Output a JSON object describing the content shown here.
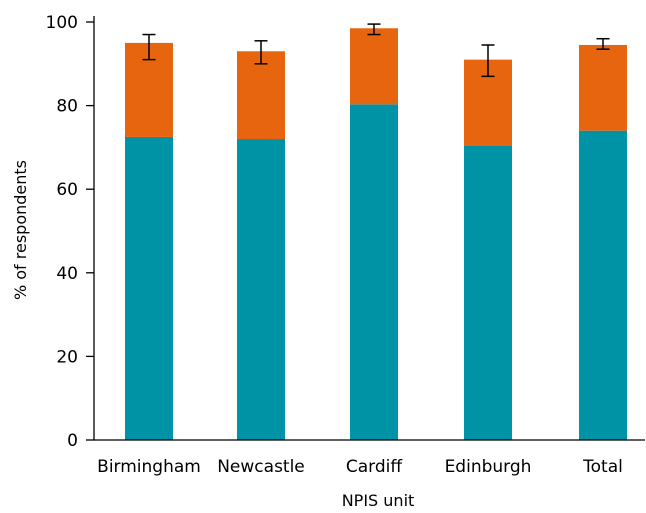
{
  "chart_data": {
    "type": "bar",
    "stacked": true,
    "title": "",
    "xlabel": "NPIS unit",
    "ylabel": "% of respondents",
    "categories": [
      "Birmingham",
      "Newcastle",
      "Cardiff",
      "Edinburgh",
      "Total"
    ],
    "ylim": [
      0,
      100
    ],
    "yticks": [
      0,
      20,
      40,
      60,
      80,
      100
    ],
    "grid": false,
    "legend": "none",
    "series": [
      {
        "color": "#0093a5",
        "values": [
          72.5,
          72,
          80.3,
          70.5,
          74
        ]
      },
      {
        "color": "#e8650f",
        "values": [
          22.5,
          21,
          18.2,
          20.5,
          20.5
        ]
      }
    ],
    "error_bars": [
      {
        "center": 95,
        "low": 91,
        "high": 97
      },
      {
        "center": 93,
        "low": 90,
        "high": 95.5
      },
      {
        "center": 98.5,
        "low": 97,
        "high": 99.5
      },
      {
        "center": 91,
        "low": 87,
        "high": 94.5
      },
      {
        "center": 94.5,
        "low": 93.5,
        "high": 96
      }
    ]
  }
}
